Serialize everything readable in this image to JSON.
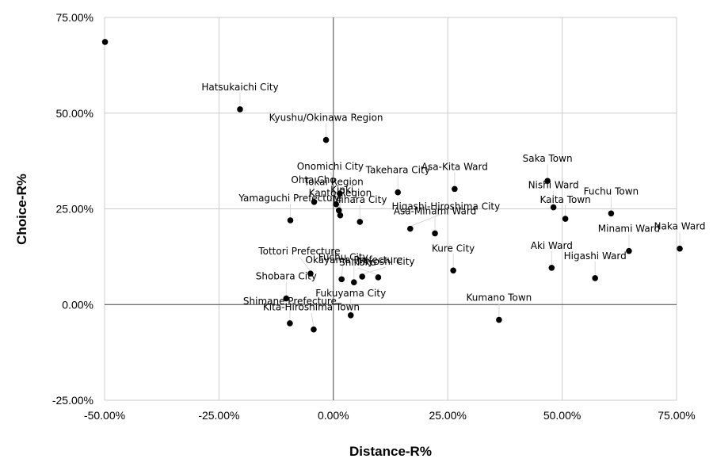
{
  "chart_data": {
    "type": "scatter",
    "xlabel": "Distance-R%",
    "ylabel": "Choice-R%",
    "xlim": [
      -50,
      75
    ],
    "ylim": [
      -25,
      75
    ],
    "x_ticks": [
      -50,
      -25,
      0,
      25,
      50,
      75
    ],
    "y_ticks": [
      -25,
      0,
      25,
      50,
      75
    ],
    "x_tick_labels": [
      "-50.00%",
      "-25.00%",
      "0.00%",
      "25.00%",
      "50.00%",
      "75.00%"
    ],
    "y_tick_labels": [
      "-25.00%",
      "0.00%",
      "25.00%",
      "50.00%",
      "75.00%"
    ],
    "grid": true,
    "marker_color": "#000000",
    "points": [
      {
        "x": -49.9,
        "y": 68.6,
        "label": ""
      },
      {
        "x": -20.4,
        "y": 51.0,
        "label": "Hatsukaichi City"
      },
      {
        "x": -1.6,
        "y": 43.0,
        "label": "Kyushu/Okinawa Region"
      },
      {
        "x": 1.4,
        "y": 29.0,
        "label": "Onomichi City"
      },
      {
        "x": 14.1,
        "y": 29.3,
        "label": "Takehara City"
      },
      {
        "x": 26.5,
        "y": 30.2,
        "label": "Asa-Kita Ward"
      },
      {
        "x": 46.8,
        "y": 32.3,
        "label": "Saka Town"
      },
      {
        "x": -4.2,
        "y": 26.8,
        "label": "Ohta Cho"
      },
      {
        "x": 0.6,
        "y": 26.2,
        "label": "Tokai Region"
      },
      {
        "x": 1.2,
        "y": 24.6,
        "label": "Kinki"
      },
      {
        "x": 5.8,
        "y": 21.6,
        "label": "Mihara City"
      },
      {
        "x": -9.4,
        "y": 22.0,
        "label": "Yamaguchi Prefecture"
      },
      {
        "x": 48.1,
        "y": 25.4,
        "label": "Nishi Ward"
      },
      {
        "x": 50.7,
        "y": 22.4,
        "label": "Kaita Town"
      },
      {
        "x": 60.7,
        "y": 23.8,
        "label": "Fuchu Town"
      },
      {
        "x": 16.8,
        "y": 19.8,
        "label": "Higashi-Hiroshima City"
      },
      {
        "x": 22.2,
        "y": 18.6,
        "label": "Asa-Minami Ward"
      },
      {
        "x": 1.5,
        "y": 23.3,
        "label": "Kanto Region"
      },
      {
        "x": 64.6,
        "y": 14.0,
        "label": "Minami Ward"
      },
      {
        "x": 75.7,
        "y": 14.6,
        "label": "Naka Ward"
      },
      {
        "x": 47.7,
        "y": 9.6,
        "label": "Aki Ward"
      },
      {
        "x": 57.2,
        "y": 6.9,
        "label": "Higashi Ward"
      },
      {
        "x": 26.2,
        "y": 8.9,
        "label": "Kure City"
      },
      {
        "x": -5.0,
        "y": 8.1,
        "label": "Tottori Prefecture"
      },
      {
        "x": 6.3,
        "y": 7.3,
        "label": "Miyoshi City"
      },
      {
        "x": 9.8,
        "y": 7.1,
        "label": "Shikoku"
      },
      {
        "x": 1.8,
        "y": 6.6,
        "label": "Fuchu City"
      },
      {
        "x": -10.3,
        "y": 1.6,
        "label": "Shobara City"
      },
      {
        "x": 4.5,
        "y": 5.8,
        "label": "Okayama Prefecture"
      },
      {
        "x": 3.8,
        "y": -2.8,
        "label": "Fukuyama City"
      },
      {
        "x": -9.5,
        "y": -4.9,
        "label": "Shimane Prefecture"
      },
      {
        "x": -4.3,
        "y": -6.5,
        "label": "Kita-Hiroshima Town"
      },
      {
        "x": 36.2,
        "y": -4.0,
        "label": "Kumano Town"
      }
    ]
  }
}
